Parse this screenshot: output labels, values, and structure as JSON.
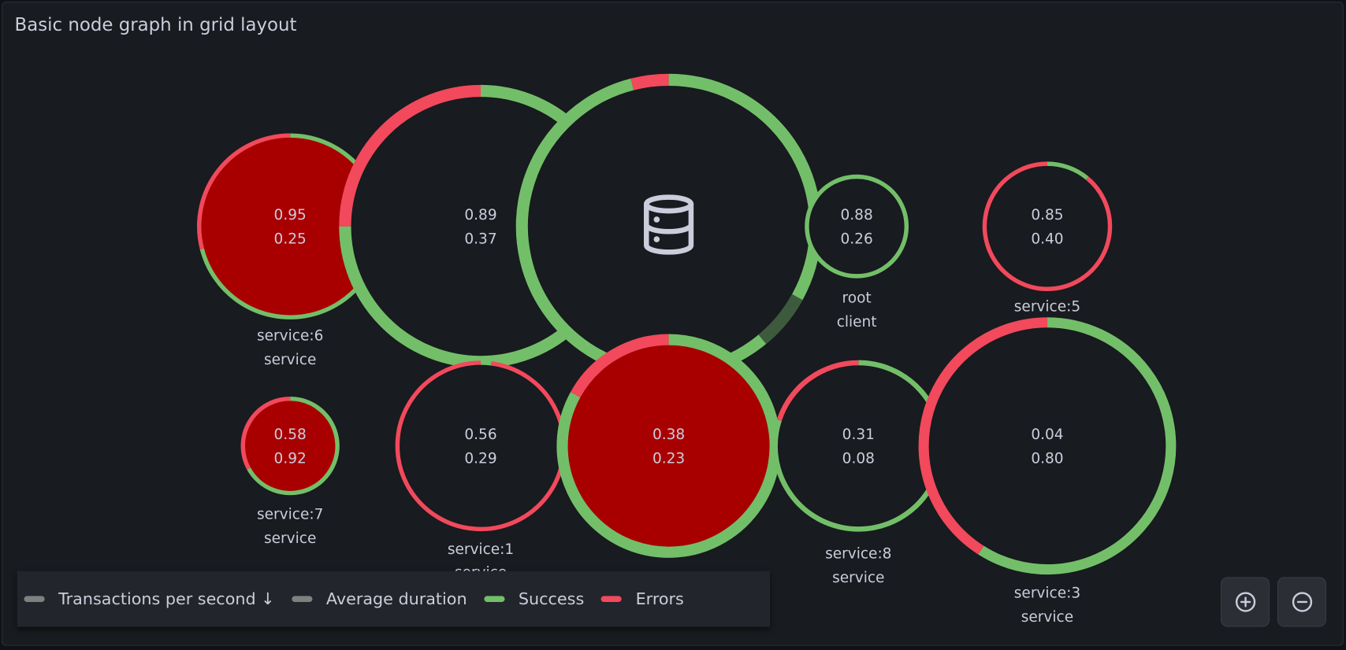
{
  "panel": {
    "title": "Basic node graph in grid layout"
  },
  "colors": {
    "success": "#73bf69",
    "errors": "#f2495c",
    "filled": "#a80000",
    "other": "#3d5a3d",
    "text": "#ccccdc",
    "node_bg": "#181b1f"
  },
  "nodes": [
    {
      "id": "service6",
      "main_stat": "0.95",
      "secondary_stat": "0.25",
      "title": "service:6",
      "subtitle": "service",
      "success": 0.71,
      "errors": 0.29,
      "filled": true
    },
    {
      "id": "node-089",
      "main_stat": "0.89",
      "secondary_stat": "0.37",
      "title": "",
      "subtitle": "",
      "success": 0.75,
      "errors": 0.25,
      "filled": false
    },
    {
      "id": "database",
      "icon": "database-icon",
      "main_stat": "",
      "secondary_stat": "",
      "title": "",
      "subtitle": "",
      "success": 0.96,
      "errors": 0.04,
      "filled": false,
      "highlight": [
        0.33,
        0.39
      ]
    },
    {
      "id": "root",
      "main_stat": "0.88",
      "secondary_stat": "0.26",
      "title": "root",
      "subtitle": "client",
      "success": 1.0,
      "errors": 0.0,
      "filled": false
    },
    {
      "id": "service5",
      "main_stat": "0.85",
      "secondary_stat": "0.40",
      "title": "service:5",
      "subtitle": "",
      "success": 0.11,
      "errors": 0.89,
      "filled": false
    },
    {
      "id": "service7",
      "main_stat": "0.58",
      "secondary_stat": "0.92",
      "title": "service:7",
      "subtitle": "service",
      "success": 0.67,
      "errors": 0.33,
      "filled": true
    },
    {
      "id": "service1",
      "main_stat": "0.56",
      "secondary_stat": "0.29",
      "title": "service:1",
      "subtitle": "service",
      "success": 0.02,
      "errors": 0.98,
      "filled": false
    },
    {
      "id": "node-038",
      "main_stat": "0.38",
      "secondary_stat": "0.23",
      "title": "",
      "subtitle": "",
      "success": 0.83,
      "errors": 0.17,
      "filled": true
    },
    {
      "id": "service8",
      "main_stat": "0.31",
      "secondary_stat": "0.08",
      "title": "service:8",
      "subtitle": "service",
      "success": 0.8,
      "errors": 0.2,
      "filled": false
    },
    {
      "id": "service3",
      "main_stat": "0.04",
      "secondary_stat": "0.80",
      "title": "service:3",
      "subtitle": "service",
      "success": 0.59,
      "errors": 0.41,
      "filled": false
    }
  ],
  "legend": [
    {
      "label": "Transactions per second ↓",
      "color": "#808080"
    },
    {
      "label": "Average duration",
      "color": "#808080"
    },
    {
      "label": "Success",
      "color": "#73bf69"
    },
    {
      "label": "Errors",
      "color": "#f2495c"
    }
  ],
  "controls": {
    "zoom_in": "zoom-in-icon",
    "zoom_out": "zoom-out-icon"
  }
}
